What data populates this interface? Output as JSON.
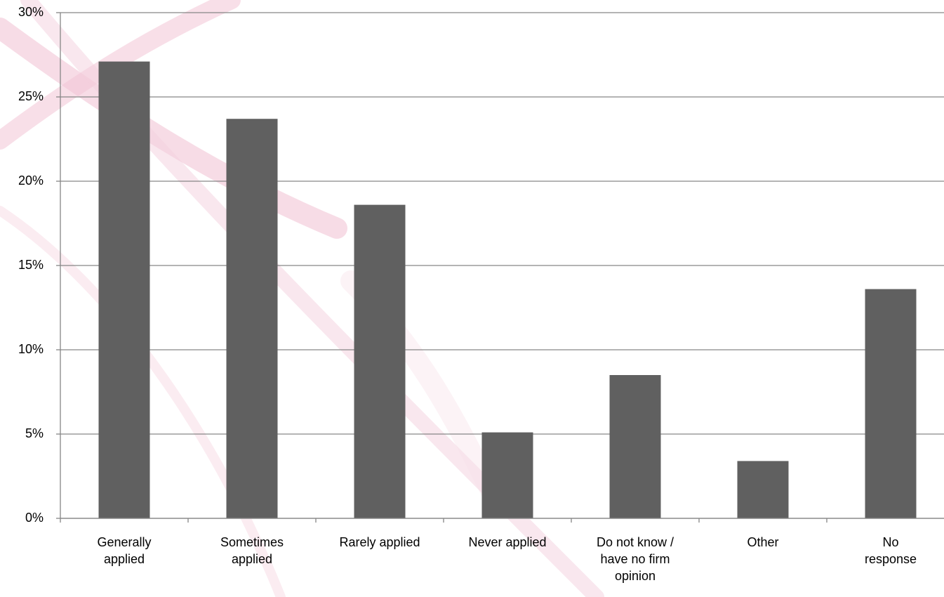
{
  "chart_data": {
    "type": "bar",
    "categories": [
      "Generally applied",
      "Sometimes applied",
      "Rarely applied",
      "Never applied",
      "Do not know / have no firm opinion",
      "Other",
      "No response"
    ],
    "values": [
      27.1,
      23.7,
      18.6,
      5.1,
      8.5,
      3.4,
      13.6
    ],
    "color": "#606060",
    "ylim": [
      0,
      30
    ],
    "yticks": [
      {
        "value": 0,
        "label": "0%"
      },
      {
        "value": 5,
        "label": "5%"
      },
      {
        "value": 10,
        "label": "10%"
      },
      {
        "value": 15,
        "label": "15%"
      },
      {
        "value": 20,
        "label": "20%"
      },
      {
        "value": 25,
        "label": "25%"
      },
      {
        "value": 30,
        "label": "30%"
      }
    ],
    "grid": true
  }
}
